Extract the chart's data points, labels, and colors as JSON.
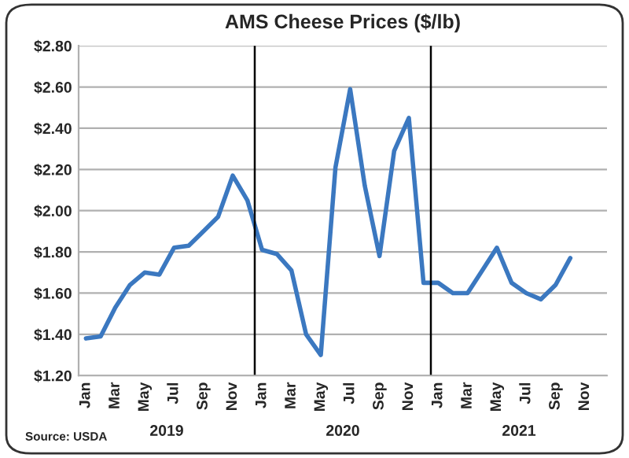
{
  "chart_data": {
    "type": "line",
    "title": "AMS Cheese Prices ($/lb)",
    "categories": [
      "Jan",
      null,
      "Mar",
      null,
      "May",
      null,
      "Jul",
      null,
      "Sep",
      null,
      "Nov",
      null,
      "Jan",
      null,
      "Mar",
      null,
      "May",
      null,
      "Jul",
      null,
      "Sep",
      null,
      "Nov",
      null,
      "Jan",
      null,
      "Mar",
      null,
      "May",
      null,
      "Jul",
      null,
      "Sep",
      null,
      "Nov",
      null
    ],
    "series": [
      {
        "color": "#3b78c0",
        "values": [
          1.38,
          1.39,
          1.53,
          1.64,
          1.7,
          1.69,
          1.82,
          1.83,
          1.9,
          1.97,
          2.17,
          2.05,
          1.81,
          1.79,
          1.71,
          1.4,
          1.3,
          2.21,
          2.59,
          2.12,
          1.78,
          2.29,
          2.45,
          1.65,
          1.65,
          1.6,
          1.6,
          1.71,
          1.82,
          1.65,
          1.6,
          1.57,
          1.64,
          1.77,
          null,
          null
        ]
      }
    ],
    "ylim": [
      1.2,
      2.8
    ],
    "yticks": [
      {
        "value": 1.2,
        "label": "$1.20"
      },
      {
        "value": 1.4,
        "label": "$1.40"
      },
      {
        "value": 1.6,
        "label": "$1.60"
      },
      {
        "value": 1.8,
        "label": "$1.80"
      },
      {
        "value": 2.0,
        "label": "$2.00"
      },
      {
        "value": 2.2,
        "label": "$2.20"
      },
      {
        "value": 2.4,
        "label": "$2.40"
      },
      {
        "value": 2.6,
        "label": "$2.60"
      },
      {
        "value": 2.8,
        "label": "$2.80"
      }
    ],
    "grid": "y",
    "legend": false,
    "marker": "none",
    "line_style": "solid",
    "annotations": [
      "Source: USDA",
      "2019",
      "2020",
      "2021"
    ]
  }
}
